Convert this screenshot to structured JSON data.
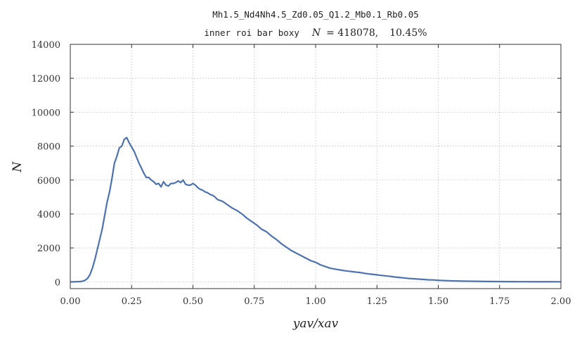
{
  "chart_data": {
    "type": "line",
    "title": "Mh1.5_Nd4Nh4.5_Zd0.05_Q1.2_Mb0.1_Rb0.05",
    "subtitle_text": "inner roi bar boxy",
    "subtitle_n_label": "N",
    "subtitle_n_value": "= 418078,",
    "subtitle_pct": "10.45%",
    "xlabel": "yav/xav",
    "ylabel": "N",
    "xlim": [
      0,
      2.0
    ],
    "ylim": [
      -400,
      14000
    ],
    "xticks": [
      0.0,
      0.25,
      0.5,
      0.75,
      1.0,
      1.25,
      1.5,
      1.75,
      2.0
    ],
    "xtick_labels": [
      "0.00",
      "0.25",
      "0.50",
      "0.75",
      "1.00",
      "1.25",
      "1.50",
      "1.75",
      "2.00"
    ],
    "yticks": [
      0,
      2000,
      4000,
      6000,
      8000,
      10000,
      12000,
      14000
    ],
    "ytick_labels": [
      "0",
      "2000",
      "4000",
      "6000",
      "8000",
      "10000",
      "12000",
      "14000"
    ],
    "grid": true,
    "series_color": "#4c72b0",
    "x": [
      0.0,
      0.01,
      0.02,
      0.03,
      0.04,
      0.05,
      0.06,
      0.07,
      0.08,
      0.09,
      0.1,
      0.11,
      0.12,
      0.13,
      0.14,
      0.15,
      0.16,
      0.17,
      0.18,
      0.19,
      0.2,
      0.21,
      0.22,
      0.23,
      0.24,
      0.25,
      0.26,
      0.27,
      0.28,
      0.29,
      0.3,
      0.31,
      0.32,
      0.33,
      0.34,
      0.35,
      0.36,
      0.37,
      0.38,
      0.39,
      0.4,
      0.41,
      0.42,
      0.43,
      0.44,
      0.45,
      0.46,
      0.47,
      0.48,
      0.49,
      0.5,
      0.51,
      0.52,
      0.53,
      0.54,
      0.55,
      0.56,
      0.57,
      0.58,
      0.59,
      0.6,
      0.62,
      0.64,
      0.66,
      0.68,
      0.7,
      0.72,
      0.74,
      0.76,
      0.78,
      0.8,
      0.82,
      0.84,
      0.86,
      0.88,
      0.9,
      0.92,
      0.94,
      0.96,
      0.98,
      1.0,
      1.02,
      1.04,
      1.06,
      1.08,
      1.1,
      1.12,
      1.14,
      1.16,
      1.18,
      1.2,
      1.22,
      1.24,
      1.26,
      1.28,
      1.3,
      1.32,
      1.34,
      1.36,
      1.38,
      1.4,
      1.42,
      1.44,
      1.46,
      1.48,
      1.5,
      1.52,
      1.55,
      1.6,
      1.65,
      1.7,
      1.75,
      1.8,
      1.85,
      1.9,
      1.95,
      2.0
    ],
    "values": [
      0,
      0,
      5,
      10,
      15,
      40,
      90,
      200,
      420,
      800,
      1300,
      1900,
      2500,
      3100,
      3900,
      4700,
      5300,
      6100,
      7000,
      7400,
      7900,
      8000,
      8400,
      8500,
      8200,
      7950,
      7700,
      7350,
      7000,
      6700,
      6400,
      6150,
      6150,
      6000,
      5900,
      5750,
      5800,
      5600,
      5900,
      5700,
      5650,
      5800,
      5800,
      5850,
      5950,
      5850,
      6000,
      5750,
      5700,
      5700,
      5800,
      5700,
      5550,
      5450,
      5400,
      5300,
      5250,
      5150,
      5100,
      5000,
      4850,
      4750,
      4550,
      4350,
      4200,
      4000,
      3750,
      3550,
      3350,
      3100,
      2950,
      2700,
      2500,
      2250,
      2050,
      1850,
      1700,
      1550,
      1400,
      1250,
      1150,
      1000,
      900,
      800,
      750,
      700,
      650,
      620,
      580,
      550,
      500,
      460,
      430,
      390,
      360,
      330,
      290,
      260,
      230,
      200,
      180,
      160,
      140,
      120,
      110,
      90,
      75,
      60,
      40,
      30,
      20,
      15,
      10,
      8,
      6,
      5,
      3
    ]
  }
}
